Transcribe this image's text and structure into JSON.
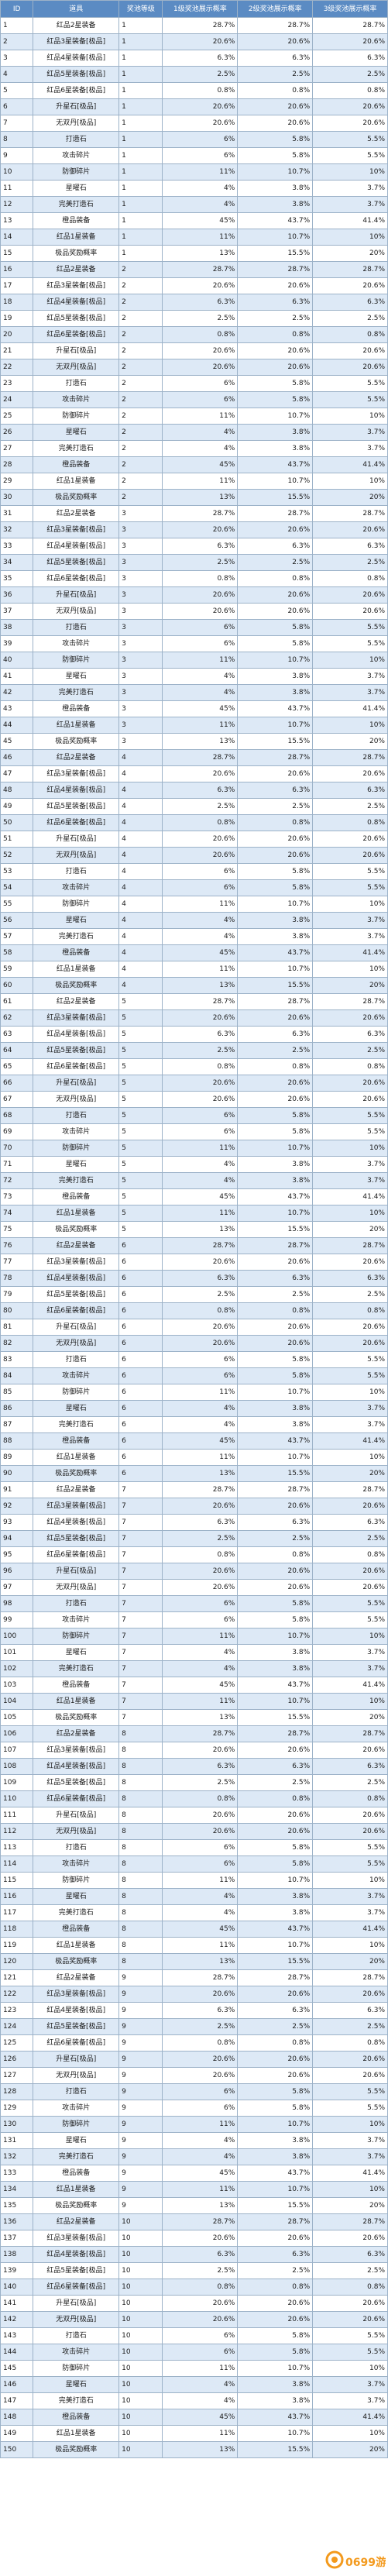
{
  "table": {
    "headers": [
      "ID",
      "道具",
      "奖池等级",
      "1级奖池展示概率",
      "2级奖池展示概率",
      "3级奖池展示概率"
    ],
    "rows": [
      [
        "1",
        "红品2星装备",
        "1",
        "28.7%",
        "28.7%",
        "28.7%"
      ],
      [
        "2",
        "红品3星装备[极品]",
        "1",
        "20.6%",
        "20.6%",
        "20.6%"
      ],
      [
        "3",
        "红品4星装备[极品]",
        "1",
        "6.3%",
        "6.3%",
        "6.3%"
      ],
      [
        "4",
        "红品5星装备[极品]",
        "1",
        "2.5%",
        "2.5%",
        "2.5%"
      ],
      [
        "5",
        "红品6星装备[极品]",
        "1",
        "0.8%",
        "0.8%",
        "0.8%"
      ],
      [
        "6",
        "升星石[极品]",
        "1",
        "20.6%",
        "20.6%",
        "20.6%"
      ],
      [
        "7",
        "无双丹[极品]",
        "1",
        "20.6%",
        "20.6%",
        "20.6%"
      ],
      [
        "8",
        "打造石",
        "1",
        "6%",
        "5.8%",
        "5.5%"
      ],
      [
        "9",
        "攻击碎片",
        "1",
        "6%",
        "5.8%",
        "5.5%"
      ],
      [
        "10",
        "防御碎片",
        "1",
        "11%",
        "10.7%",
        "10%"
      ],
      [
        "11",
        "星曜石",
        "1",
        "4%",
        "3.8%",
        "3.7%"
      ],
      [
        "12",
        "完美打造石",
        "1",
        "4%",
        "3.8%",
        "3.7%"
      ],
      [
        "13",
        "橙品装备",
        "1",
        "45%",
        "43.7%",
        "41.4%"
      ],
      [
        "14",
        "红品1星装备",
        "1",
        "11%",
        "10.7%",
        "10%"
      ],
      [
        "15",
        "极品奖励概率",
        "1",
        "13%",
        "15.5%",
        "20%"
      ],
      [
        "16",
        "红品2星装备",
        "2",
        "28.7%",
        "28.7%",
        "28.7%"
      ],
      [
        "17",
        "红品3星装备[极品]",
        "2",
        "20.6%",
        "20.6%",
        "20.6%"
      ],
      [
        "18",
        "红品4星装备[极品]",
        "2",
        "6.3%",
        "6.3%",
        "6.3%"
      ],
      [
        "19",
        "红品5星装备[极品]",
        "2",
        "2.5%",
        "2.5%",
        "2.5%"
      ],
      [
        "20",
        "红品6星装备[极品]",
        "2",
        "0.8%",
        "0.8%",
        "0.8%"
      ],
      [
        "21",
        "升星石[极品]",
        "2",
        "20.6%",
        "20.6%",
        "20.6%"
      ],
      [
        "22",
        "无双丹[极品]",
        "2",
        "20.6%",
        "20.6%",
        "20.6%"
      ],
      [
        "23",
        "打造石",
        "2",
        "6%",
        "5.8%",
        "5.5%"
      ],
      [
        "24",
        "攻击碎片",
        "2",
        "6%",
        "5.8%",
        "5.5%"
      ],
      [
        "25",
        "防御碎片",
        "2",
        "11%",
        "10.7%",
        "10%"
      ],
      [
        "26",
        "星曜石",
        "2",
        "4%",
        "3.8%",
        "3.7%"
      ],
      [
        "27",
        "完美打造石",
        "2",
        "4%",
        "3.8%",
        "3.7%"
      ],
      [
        "28",
        "橙品装备",
        "2",
        "45%",
        "43.7%",
        "41.4%"
      ],
      [
        "29",
        "红品1星装备",
        "2",
        "11%",
        "10.7%",
        "10%"
      ],
      [
        "30",
        "极品奖励概率",
        "2",
        "13%",
        "15.5%",
        "20%"
      ],
      [
        "31",
        "红品2星装备",
        "3",
        "28.7%",
        "28.7%",
        "28.7%"
      ],
      [
        "32",
        "红品3星装备[极品]",
        "3",
        "20.6%",
        "20.6%",
        "20.6%"
      ],
      [
        "33",
        "红品4星装备[极品]",
        "3",
        "6.3%",
        "6.3%",
        "6.3%"
      ],
      [
        "34",
        "红品5星装备[极品]",
        "3",
        "2.5%",
        "2.5%",
        "2.5%"
      ],
      [
        "35",
        "红品6星装备[极品]",
        "3",
        "0.8%",
        "0.8%",
        "0.8%"
      ],
      [
        "36",
        "升星石[极品]",
        "3",
        "20.6%",
        "20.6%",
        "20.6%"
      ],
      [
        "37",
        "无双丹[极品]",
        "3",
        "20.6%",
        "20.6%",
        "20.6%"
      ],
      [
        "38",
        "打造石",
        "3",
        "6%",
        "5.8%",
        "5.5%"
      ],
      [
        "39",
        "攻击碎片",
        "3",
        "6%",
        "5.8%",
        "5.5%"
      ],
      [
        "40",
        "防御碎片",
        "3",
        "11%",
        "10.7%",
        "10%"
      ],
      [
        "41",
        "星曜石",
        "3",
        "4%",
        "3.8%",
        "3.7%"
      ],
      [
        "42",
        "完美打造石",
        "3",
        "4%",
        "3.8%",
        "3.7%"
      ],
      [
        "43",
        "橙品装备",
        "3",
        "45%",
        "43.7%",
        "41.4%"
      ],
      [
        "44",
        "红品1星装备",
        "3",
        "11%",
        "10.7%",
        "10%"
      ],
      [
        "45",
        "极品奖励概率",
        "3",
        "13%",
        "15.5%",
        "20%"
      ],
      [
        "46",
        "红品2星装备",
        "4",
        "28.7%",
        "28.7%",
        "28.7%"
      ],
      [
        "47",
        "红品3星装备[极品]",
        "4",
        "20.6%",
        "20.6%",
        "20.6%"
      ],
      [
        "48",
        "红品4星装备[极品]",
        "4",
        "6.3%",
        "6.3%",
        "6.3%"
      ],
      [
        "49",
        "红品5星装备[极品]",
        "4",
        "2.5%",
        "2.5%",
        "2.5%"
      ],
      [
        "50",
        "红品6星装备[极品]",
        "4",
        "0.8%",
        "0.8%",
        "0.8%"
      ],
      [
        "51",
        "升星石[极品]",
        "4",
        "20.6%",
        "20.6%",
        "20.6%"
      ],
      [
        "52",
        "无双丹[极品]",
        "4",
        "20.6%",
        "20.6%",
        "20.6%"
      ],
      [
        "53",
        "打造石",
        "4",
        "6%",
        "5.8%",
        "5.5%"
      ],
      [
        "54",
        "攻击碎片",
        "4",
        "6%",
        "5.8%",
        "5.5%"
      ],
      [
        "55",
        "防御碎片",
        "4",
        "11%",
        "10.7%",
        "10%"
      ],
      [
        "56",
        "星曜石",
        "4",
        "4%",
        "3.8%",
        "3.7%"
      ],
      [
        "57",
        "完美打造石",
        "4",
        "4%",
        "3.8%",
        "3.7%"
      ],
      [
        "58",
        "橙品装备",
        "4",
        "45%",
        "43.7%",
        "41.4%"
      ],
      [
        "59",
        "红品1星装备",
        "4",
        "11%",
        "10.7%",
        "10%"
      ],
      [
        "60",
        "极品奖励概率",
        "4",
        "13%",
        "15.5%",
        "20%"
      ],
      [
        "61",
        "红品2星装备",
        "5",
        "28.7%",
        "28.7%",
        "28.7%"
      ],
      [
        "62",
        "红品3星装备[极品]",
        "5",
        "20.6%",
        "20.6%",
        "20.6%"
      ],
      [
        "63",
        "红品4星装备[极品]",
        "5",
        "6.3%",
        "6.3%",
        "6.3%"
      ],
      [
        "64",
        "红品5星装备[极品]",
        "5",
        "2.5%",
        "2.5%",
        "2.5%"
      ],
      [
        "65",
        "红品6星装备[极品]",
        "5",
        "0.8%",
        "0.8%",
        "0.8%"
      ],
      [
        "66",
        "升星石[极品]",
        "5",
        "20.6%",
        "20.6%",
        "20.6%"
      ],
      [
        "67",
        "无双丹[极品]",
        "5",
        "20.6%",
        "20.6%",
        "20.6%"
      ],
      [
        "68",
        "打造石",
        "5",
        "6%",
        "5.8%",
        "5.5%"
      ],
      [
        "69",
        "攻击碎片",
        "5",
        "6%",
        "5.8%",
        "5.5%"
      ],
      [
        "70",
        "防御碎片",
        "5",
        "11%",
        "10.7%",
        "10%"
      ],
      [
        "71",
        "星曜石",
        "5",
        "4%",
        "3.8%",
        "3.7%"
      ],
      [
        "72",
        "完美打造石",
        "5",
        "4%",
        "3.8%",
        "3.7%"
      ],
      [
        "73",
        "橙品装备",
        "5",
        "45%",
        "43.7%",
        "41.4%"
      ],
      [
        "74",
        "红品1星装备",
        "5",
        "11%",
        "10.7%",
        "10%"
      ],
      [
        "75",
        "极品奖励概率",
        "5",
        "13%",
        "15.5%",
        "20%"
      ],
      [
        "76",
        "红品2星装备",
        "6",
        "28.7%",
        "28.7%",
        "28.7%"
      ],
      [
        "77",
        "红品3星装备[极品]",
        "6",
        "20.6%",
        "20.6%",
        "20.6%"
      ],
      [
        "78",
        "红品4星装备[极品]",
        "6",
        "6.3%",
        "6.3%",
        "6.3%"
      ],
      [
        "79",
        "红品5星装备[极品]",
        "6",
        "2.5%",
        "2.5%",
        "2.5%"
      ],
      [
        "80",
        "红品6星装备[极品]",
        "6",
        "0.8%",
        "0.8%",
        "0.8%"
      ],
      [
        "81",
        "升星石[极品]",
        "6",
        "20.6%",
        "20.6%",
        "20.6%"
      ],
      [
        "82",
        "无双丹[极品]",
        "6",
        "20.6%",
        "20.6%",
        "20.6%"
      ],
      [
        "83",
        "打造石",
        "6",
        "6%",
        "5.8%",
        "5.5%"
      ],
      [
        "84",
        "攻击碎片",
        "6",
        "6%",
        "5.8%",
        "5.5%"
      ],
      [
        "85",
        "防御碎片",
        "6",
        "11%",
        "10.7%",
        "10%"
      ],
      [
        "86",
        "星曜石",
        "6",
        "4%",
        "3.8%",
        "3.7%"
      ],
      [
        "87",
        "完美打造石",
        "6",
        "4%",
        "3.8%",
        "3.7%"
      ],
      [
        "88",
        "橙品装备",
        "6",
        "45%",
        "43.7%",
        "41.4%"
      ],
      [
        "89",
        "红品1星装备",
        "6",
        "11%",
        "10.7%",
        "10%"
      ],
      [
        "90",
        "极品奖励概率",
        "6",
        "13%",
        "15.5%",
        "20%"
      ],
      [
        "91",
        "红品2星装备",
        "7",
        "28.7%",
        "28.7%",
        "28.7%"
      ],
      [
        "92",
        "红品3星装备[极品]",
        "7",
        "20.6%",
        "20.6%",
        "20.6%"
      ],
      [
        "93",
        "红品4星装备[极品]",
        "7",
        "6.3%",
        "6.3%",
        "6.3%"
      ],
      [
        "94",
        "红品5星装备[极品]",
        "7",
        "2.5%",
        "2.5%",
        "2.5%"
      ],
      [
        "95",
        "红品6星装备[极品]",
        "7",
        "0.8%",
        "0.8%",
        "0.8%"
      ],
      [
        "96",
        "升星石[极品]",
        "7",
        "20.6%",
        "20.6%",
        "20.6%"
      ],
      [
        "97",
        "无双丹[极品]",
        "7",
        "20.6%",
        "20.6%",
        "20.6%"
      ],
      [
        "98",
        "打造石",
        "7",
        "6%",
        "5.8%",
        "5.5%"
      ],
      [
        "99",
        "攻击碎片",
        "7",
        "6%",
        "5.8%",
        "5.5%"
      ],
      [
        "100",
        "防御碎片",
        "7",
        "11%",
        "10.7%",
        "10%"
      ],
      [
        "101",
        "星曜石",
        "7",
        "4%",
        "3.8%",
        "3.7%"
      ],
      [
        "102",
        "完美打造石",
        "7",
        "4%",
        "3.8%",
        "3.7%"
      ],
      [
        "103",
        "橙品装备",
        "7",
        "45%",
        "43.7%",
        "41.4%"
      ],
      [
        "104",
        "红品1星装备",
        "7",
        "11%",
        "10.7%",
        "10%"
      ],
      [
        "105",
        "极品奖励概率",
        "7",
        "13%",
        "15.5%",
        "20%"
      ],
      [
        "106",
        "红品2星装备",
        "8",
        "28.7%",
        "28.7%",
        "28.7%"
      ],
      [
        "107",
        "红品3星装备[极品]",
        "8",
        "20.6%",
        "20.6%",
        "20.6%"
      ],
      [
        "108",
        "红品4星装备[极品]",
        "8",
        "6.3%",
        "6.3%",
        "6.3%"
      ],
      [
        "109",
        "红品5星装备[极品]",
        "8",
        "2.5%",
        "2.5%",
        "2.5%"
      ],
      [
        "110",
        "红品6星装备[极品]",
        "8",
        "0.8%",
        "0.8%",
        "0.8%"
      ],
      [
        "111",
        "升星石[极品]",
        "8",
        "20.6%",
        "20.6%",
        "20.6%"
      ],
      [
        "112",
        "无双丹[极品]",
        "8",
        "20.6%",
        "20.6%",
        "20.6%"
      ],
      [
        "113",
        "打造石",
        "8",
        "6%",
        "5.8%",
        "5.5%"
      ],
      [
        "114",
        "攻击碎片",
        "8",
        "6%",
        "5.8%",
        "5.5%"
      ],
      [
        "115",
        "防御碎片",
        "8",
        "11%",
        "10.7%",
        "10%"
      ],
      [
        "116",
        "星曜石",
        "8",
        "4%",
        "3.8%",
        "3.7%"
      ],
      [
        "117",
        "完美打造石",
        "8",
        "4%",
        "3.8%",
        "3.7%"
      ],
      [
        "118",
        "橙品装备",
        "8",
        "45%",
        "43.7%",
        "41.4%"
      ],
      [
        "119",
        "红品1星装备",
        "8",
        "11%",
        "10.7%",
        "10%"
      ],
      [
        "120",
        "极品奖励概率",
        "8",
        "13%",
        "15.5%",
        "20%"
      ],
      [
        "121",
        "红品2星装备",
        "9",
        "28.7%",
        "28.7%",
        "28.7%"
      ],
      [
        "122",
        "红品3星装备[极品]",
        "9",
        "20.6%",
        "20.6%",
        "20.6%"
      ],
      [
        "123",
        "红品4星装备[极品]",
        "9",
        "6.3%",
        "6.3%",
        "6.3%"
      ],
      [
        "124",
        "红品5星装备[极品]",
        "9",
        "2.5%",
        "2.5%",
        "2.5%"
      ],
      [
        "125",
        "红品6星装备[极品]",
        "9",
        "0.8%",
        "0.8%",
        "0.8%"
      ],
      [
        "126",
        "升星石[极品]",
        "9",
        "20.6%",
        "20.6%",
        "20.6%"
      ],
      [
        "127",
        "无双丹[极品]",
        "9",
        "20.6%",
        "20.6%",
        "20.6%"
      ],
      [
        "128",
        "打造石",
        "9",
        "6%",
        "5.8%",
        "5.5%"
      ],
      [
        "129",
        "攻击碎片",
        "9",
        "6%",
        "5.8%",
        "5.5%"
      ],
      [
        "130",
        "防御碎片",
        "9",
        "11%",
        "10.7%",
        "10%"
      ],
      [
        "131",
        "星曜石",
        "9",
        "4%",
        "3.8%",
        "3.7%"
      ],
      [
        "132",
        "完美打造石",
        "9",
        "4%",
        "3.8%",
        "3.7%"
      ],
      [
        "133",
        "橙品装备",
        "9",
        "45%",
        "43.7%",
        "41.4%"
      ],
      [
        "134",
        "红品1星装备",
        "9",
        "11%",
        "10.7%",
        "10%"
      ],
      [
        "135",
        "极品奖励概率",
        "9",
        "13%",
        "15.5%",
        "20%"
      ],
      [
        "136",
        "红品2星装备",
        "10",
        "28.7%",
        "28.7%",
        "28.7%"
      ],
      [
        "137",
        "红品3星装备[极品]",
        "10",
        "20.6%",
        "20.6%",
        "20.6%"
      ],
      [
        "138",
        "红品4星装备[极品]",
        "10",
        "6.3%",
        "6.3%",
        "6.3%"
      ],
      [
        "139",
        "红品5星装备[极品]",
        "10",
        "2.5%",
        "2.5%",
        "2.5%"
      ],
      [
        "140",
        "红品6星装备[极品]",
        "10",
        "0.8%",
        "0.8%",
        "0.8%"
      ],
      [
        "141",
        "升星石[极品]",
        "10",
        "20.6%",
        "20.6%",
        "20.6%"
      ],
      [
        "142",
        "无双丹[极品]",
        "10",
        "20.6%",
        "20.6%",
        "20.6%"
      ],
      [
        "143",
        "打造石",
        "10",
        "6%",
        "5.8%",
        "5.5%"
      ],
      [
        "144",
        "攻击碎片",
        "10",
        "6%",
        "5.8%",
        "5.5%"
      ],
      [
        "145",
        "防御碎片",
        "10",
        "11%",
        "10.7%",
        "10%"
      ],
      [
        "146",
        "星曜石",
        "10",
        "4%",
        "3.8%",
        "3.7%"
      ],
      [
        "147",
        "完美打造石",
        "10",
        "4%",
        "3.8%",
        "3.7%"
      ],
      [
        "148",
        "橙品装备",
        "10",
        "45%",
        "43.7%",
        "41.4%"
      ],
      [
        "149",
        "红品1星装备",
        "10",
        "11%",
        "10.7%",
        "10%"
      ],
      [
        "150",
        "极品奖励概率",
        "10",
        "13%",
        "15.5%",
        "20%"
      ]
    ]
  },
  "watermark": {
    "text": "0699游戏",
    "color": "#f39a1e"
  }
}
